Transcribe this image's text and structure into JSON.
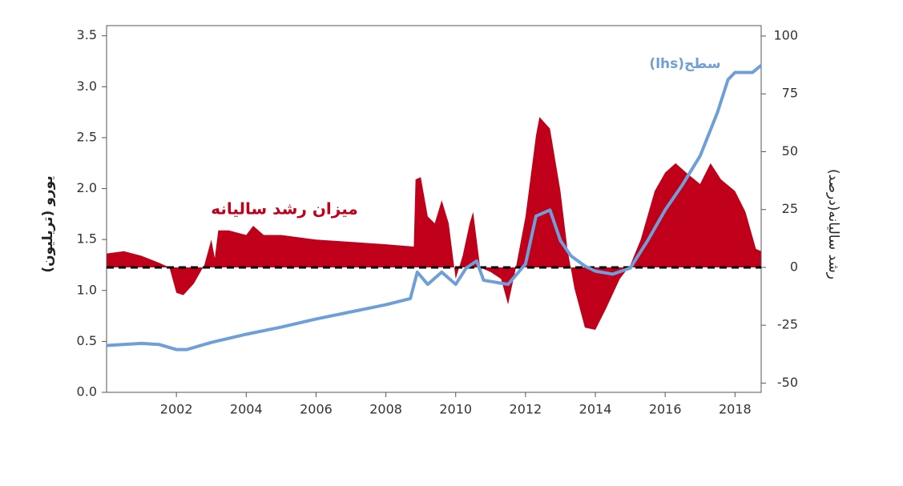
{
  "chart_data": {
    "type": "combo",
    "xlim": [
      2000,
      2018.75
    ],
    "xticks": [
      2002,
      2004,
      2006,
      2008,
      2010,
      2012,
      2014,
      2016,
      2018
    ],
    "ylim": [
      0,
      3.6
    ],
    "yticks": [
      {
        "value": 0,
        "label": "0.0"
      },
      0.5,
      {
        "value": 1,
        "label": "1.0"
      },
      1.5,
      {
        "value": 2,
        "label": "2.0"
      },
      2.5,
      {
        "value": 3,
        "label": "3.0"
      },
      3.5
    ],
    "y2lim": [
      -54,
      104.5
    ],
    "y2ticks": [
      -50,
      -25,
      0,
      25,
      50,
      75,
      100
    ],
    "ylabel": "یورو (تریلیون)",
    "y2label": "رشد سالیانه(درصد)",
    "zero_line": true,
    "series": [
      {
        "name": "میزان رشد سالیانه",
        "type": "area",
        "axis": "y2",
        "color": "#c0001a",
        "x": [
          2000.0,
          2000.5,
          2001.0,
          2001.5,
          2001.8,
          2002.0,
          2002.2,
          2002.5,
          2002.8,
          2003.0,
          2003.1,
          2003.2,
          2003.5,
          2004.0,
          2004.2,
          2004.5,
          2005.0,
          2006.0,
          2007.0,
          2008.0,
          2008.8,
          2008.85,
          2009.0,
          2009.2,
          2009.4,
          2009.6,
          2009.8,
          2010.0,
          2010.2,
          2010.4,
          2010.5,
          2010.7,
          2011.0,
          2011.3,
          2011.5,
          2011.7,
          2012.0,
          2012.3,
          2012.4,
          2012.7,
          2013.0,
          2013.2,
          2013.4,
          2013.7,
          2014.0,
          2014.3,
          2014.7,
          2015.0,
          2015.3,
          2015.7,
          2016.0,
          2016.3,
          2016.6,
          2017.0,
          2017.3,
          2017.6,
          2018.0,
          2018.3,
          2018.6,
          2018.75
        ],
        "values": [
          6,
          7,
          5,
          2,
          0,
          -11,
          -12,
          -7,
          1,
          12,
          4,
          16,
          16,
          14,
          18,
          14,
          14,
          12,
          11,
          10,
          9,
          38,
          39,
          22,
          19,
          29,
          19,
          -5,
          5,
          19,
          24,
          0,
          -2,
          -5,
          -16,
          -2,
          22,
          57,
          65,
          60,
          33,
          8,
          -9,
          -26,
          -27,
          -18,
          -5,
          1,
          12,
          33,
          41,
          45,
          41,
          36,
          45,
          38,
          33,
          24,
          8,
          7
        ]
      },
      {
        "name": "سطح(lhs)",
        "type": "line",
        "axis": "y",
        "color": "#6f9fd8",
        "x": [
          2000.0,
          2001.0,
          2001.5,
          2002.0,
          2002.3,
          2003.0,
          2004.0,
          2005.0,
          2006.0,
          2007.0,
          2008.0,
          2008.7,
          2008.9,
          2009.2,
          2009.6,
          2010.0,
          2010.3,
          2010.6,
          2010.8,
          2011.5,
          2012.0,
          2012.3,
          2012.7,
          2013.0,
          2013.3,
          2013.7,
          2014.0,
          2014.5,
          2015.0,
          2015.5,
          2016.0,
          2016.5,
          2017.0,
          2017.5,
          2017.8,
          2018.0,
          2018.5,
          2018.75
        ],
        "values": [
          0.46,
          0.48,
          0.47,
          0.42,
          0.42,
          0.49,
          0.57,
          0.64,
          0.72,
          0.79,
          0.86,
          0.92,
          1.18,
          1.06,
          1.18,
          1.06,
          1.22,
          1.29,
          1.1,
          1.06,
          1.26,
          1.73,
          1.79,
          1.49,
          1.34,
          1.24,
          1.19,
          1.16,
          1.22,
          1.49,
          1.79,
          2.04,
          2.32,
          2.75,
          3.07,
          3.14,
          3.14,
          3.21
        ]
      }
    ]
  }
}
